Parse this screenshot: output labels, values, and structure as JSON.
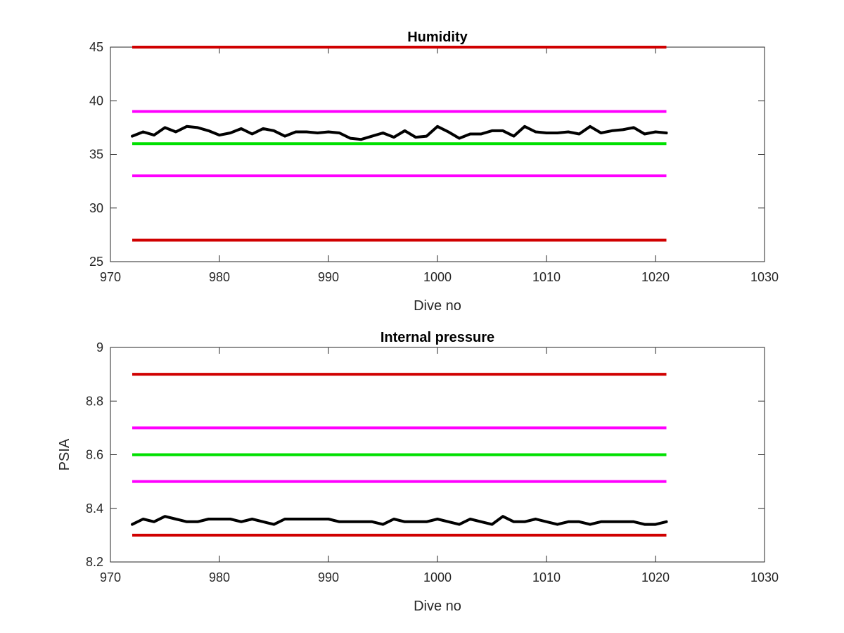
{
  "chart_data": [
    {
      "type": "line",
      "title": "Humidity",
      "xlabel": "Dive no",
      "ylabel": "",
      "xlim": [
        970,
        1030
      ],
      "ylim": [
        25,
        45
      ],
      "xticks": [
        970,
        980,
        990,
        1000,
        1010,
        1020,
        1030
      ],
      "yticks": [
        25,
        30,
        35,
        40,
        45
      ],
      "grid": false,
      "legend": false,
      "reference_lines": [
        {
          "value": 45,
          "color": "#d00000",
          "x": [
            972,
            1021
          ]
        },
        {
          "value": 39,
          "color": "#ff00ff",
          "x": [
            972,
            1021
          ]
        },
        {
          "value": 36,
          "color": "#00e000",
          "x": [
            972,
            1021
          ]
        },
        {
          "value": 33,
          "color": "#ff00ff",
          "x": [
            972,
            1021
          ]
        },
        {
          "value": 27,
          "color": "#d00000",
          "x": [
            972,
            1021
          ]
        }
      ],
      "series": [
        {
          "color": "#000000",
          "x": [
            972,
            973,
            974,
            975,
            976,
            977,
            978,
            979,
            980,
            981,
            982,
            983,
            984,
            985,
            986,
            987,
            988,
            989,
            990,
            991,
            992,
            993,
            994,
            995,
            996,
            997,
            998,
            999,
            1000,
            1001,
            1002,
            1003,
            1004,
            1005,
            1006,
            1007,
            1008,
            1009,
            1010,
            1011,
            1012,
            1013,
            1014,
            1015,
            1016,
            1017,
            1018,
            1019,
            1020,
            1021
          ],
          "y": [
            36.7,
            37.1,
            36.8,
            37.5,
            37.1,
            37.6,
            37.5,
            37.2,
            36.8,
            37.0,
            37.4,
            36.9,
            37.4,
            37.2,
            36.7,
            37.1,
            37.1,
            37.0,
            37.1,
            37.0,
            36.5,
            36.4,
            36.7,
            37.0,
            36.6,
            37.2,
            36.6,
            36.7,
            37.6,
            37.1,
            36.5,
            36.9,
            36.9,
            37.2,
            37.2,
            36.7,
            37.6,
            37.1,
            37.0,
            37.0,
            37.1,
            36.9,
            37.6,
            37.0,
            37.2,
            37.3,
            37.5,
            36.9,
            37.1,
            37.0
          ]
        }
      ]
    },
    {
      "type": "line",
      "title": "Internal pressure",
      "xlabel": "Dive no",
      "ylabel": "PSIA",
      "xlim": [
        970,
        1030
      ],
      "ylim": [
        8.2,
        9.0
      ],
      "xticks": [
        970,
        980,
        990,
        1000,
        1010,
        1020,
        1030
      ],
      "yticks": [
        "8.2",
        "8.4",
        "8.6",
        "8.8",
        "9"
      ],
      "grid": false,
      "legend": false,
      "reference_lines": [
        {
          "value": 8.9,
          "color": "#d00000",
          "x": [
            972,
            1021
          ]
        },
        {
          "value": 8.7,
          "color": "#ff00ff",
          "x": [
            972,
            1021
          ]
        },
        {
          "value": 8.6,
          "color": "#00e000",
          "x": [
            972,
            1021
          ]
        },
        {
          "value": 8.5,
          "color": "#ff00ff",
          "x": [
            972,
            1021
          ]
        },
        {
          "value": 8.3,
          "color": "#d00000",
          "x": [
            972,
            1021
          ]
        }
      ],
      "series": [
        {
          "color": "#000000",
          "x": [
            972,
            973,
            974,
            975,
            976,
            977,
            978,
            979,
            980,
            981,
            982,
            983,
            984,
            985,
            986,
            987,
            988,
            989,
            990,
            991,
            992,
            993,
            994,
            995,
            996,
            997,
            998,
            999,
            1000,
            1001,
            1002,
            1003,
            1004,
            1005,
            1006,
            1007,
            1008,
            1009,
            1010,
            1011,
            1012,
            1013,
            1014,
            1015,
            1016,
            1017,
            1018,
            1019,
            1020,
            1021
          ],
          "y": [
            8.34,
            8.36,
            8.35,
            8.37,
            8.36,
            8.35,
            8.35,
            8.36,
            8.36,
            8.36,
            8.35,
            8.36,
            8.35,
            8.34,
            8.36,
            8.36,
            8.36,
            8.36,
            8.36,
            8.35,
            8.35,
            8.35,
            8.35,
            8.34,
            8.36,
            8.35,
            8.35,
            8.35,
            8.36,
            8.35,
            8.34,
            8.36,
            8.35,
            8.34,
            8.37,
            8.35,
            8.35,
            8.36,
            8.35,
            8.34,
            8.35,
            8.35,
            8.34,
            8.35,
            8.35,
            8.35,
            8.35,
            8.34,
            8.34,
            8.35
          ]
        }
      ]
    }
  ]
}
